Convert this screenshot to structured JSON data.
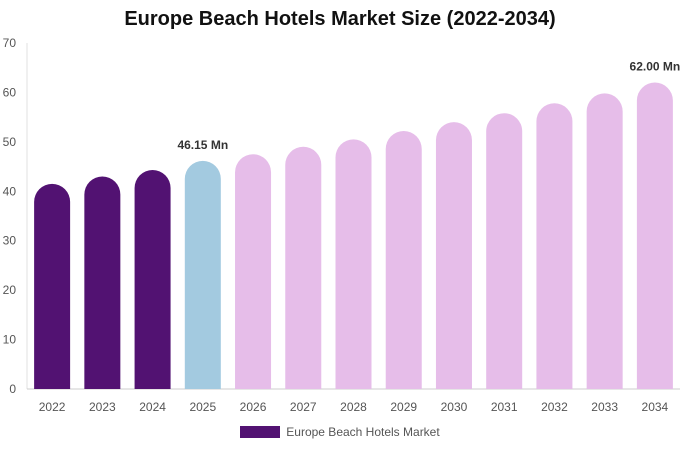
{
  "chart_data": {
    "type": "bar",
    "title": "Europe Beach Hotels Market Size (2022-2034)",
    "xlabel": "",
    "ylabel": "",
    "ylim": [
      0,
      70
    ],
    "yticks": [
      0,
      10,
      20,
      30,
      40,
      50,
      60,
      70
    ],
    "grid": false,
    "legend_position": "bottom",
    "categories": [
      "2022",
      "2023",
      "2024",
      "2025",
      "2026",
      "2027",
      "2028",
      "2029",
      "2030",
      "2031",
      "2032",
      "2033",
      "2034"
    ],
    "series": [
      {
        "name": "Europe Beach Hotels Market",
        "values": [
          41.5,
          43.0,
          44.3,
          46.15,
          47.5,
          49.0,
          50.5,
          52.2,
          54.0,
          55.8,
          57.8,
          59.8,
          62.0
        ]
      }
    ],
    "bar_colors": [
      "#521272",
      "#521272",
      "#521272",
      "#a3cae0",
      "#e6bde9",
      "#e6bde9",
      "#e6bde9",
      "#e6bde9",
      "#e6bde9",
      "#e6bde9",
      "#e6bde9",
      "#e6bde9",
      "#e6bde9"
    ],
    "legend_color": "#521272",
    "data_labels": [
      {
        "index": 3,
        "text": "46.15 Mn"
      },
      {
        "index": 12,
        "text": "62.00 Mn"
      }
    ]
  }
}
